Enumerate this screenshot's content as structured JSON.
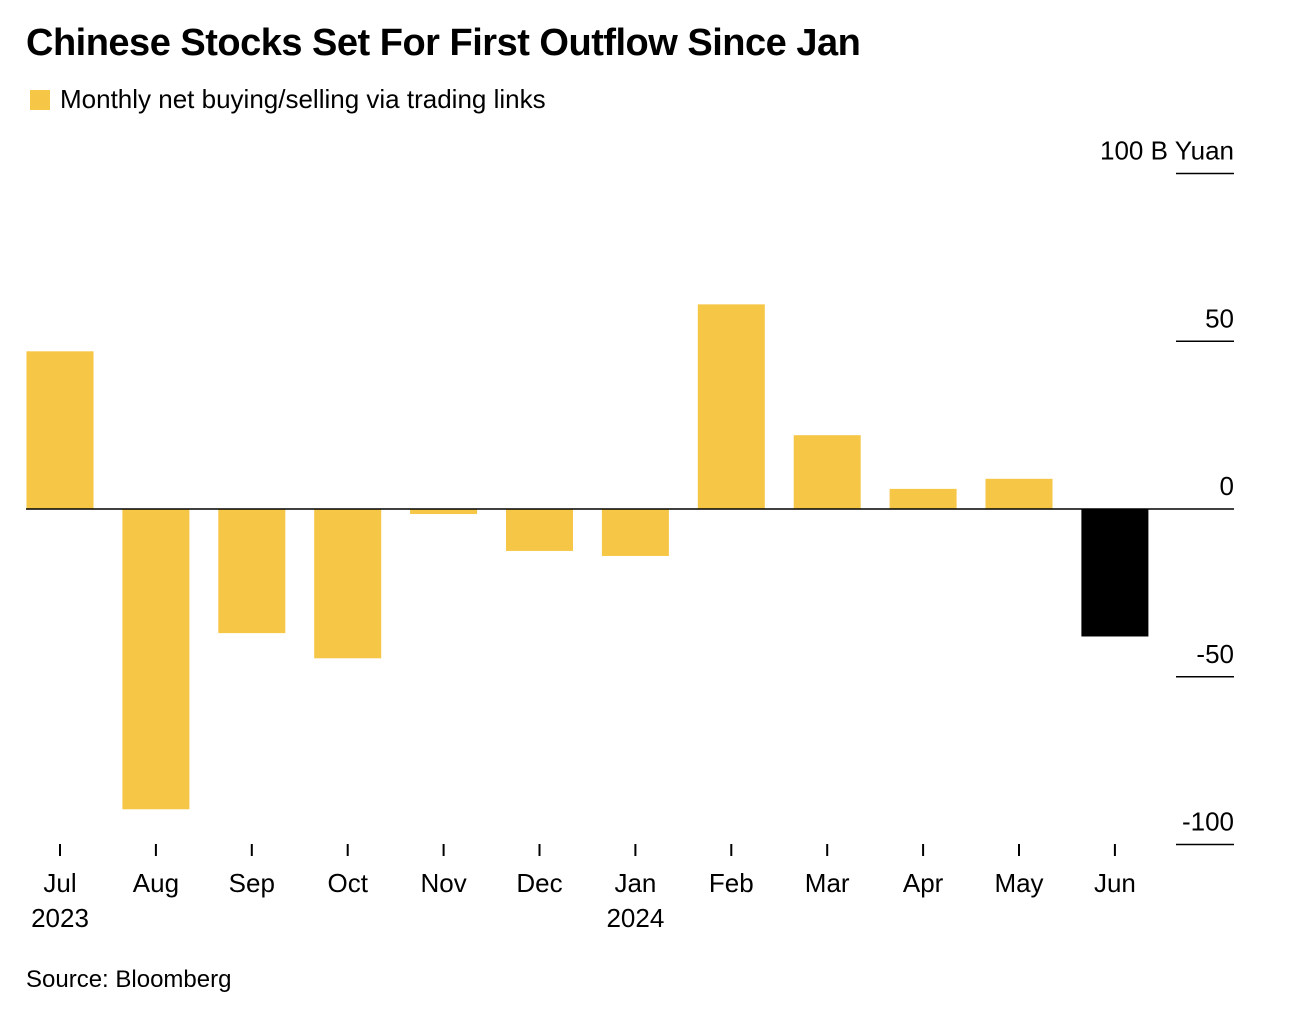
{
  "title": "Chinese Stocks Set For First Outflow Since Jan",
  "source": "Source: Bloomberg",
  "colors": {
    "bar": "#f6c646",
    "highlight": "#000000",
    "axis": "#000000"
  },
  "chart_data": {
    "type": "bar",
    "title": "Chinese Stocks Set For First Outflow Since Jan",
    "legend": {
      "position": "top-left",
      "entries": [
        "Monthly net buying/selling via trading links"
      ]
    },
    "series": [
      {
        "name": "Monthly net buying/selling via trading links",
        "values": [
          47,
          -89.5,
          -37,
          -44.5,
          -1.5,
          -12.5,
          -14,
          61,
          22,
          6,
          9,
          -38
        ],
        "highlight_index": 11
      }
    ],
    "categories": [
      "Jul 2023",
      "Aug",
      "Sep",
      "Oct",
      "Nov",
      "Dec",
      "Jan 2024",
      "Feb",
      "Mar",
      "Apr",
      "May",
      "Jun"
    ],
    "x_tick_labels": [
      {
        "month": "Jul",
        "year": "2023"
      },
      {
        "month": "Aug",
        "year": ""
      },
      {
        "month": "Sep",
        "year": ""
      },
      {
        "month": "Oct",
        "year": ""
      },
      {
        "month": "Nov",
        "year": ""
      },
      {
        "month": "Dec",
        "year": ""
      },
      {
        "month": "Jan",
        "year": "2024"
      },
      {
        "month": "Feb",
        "year": ""
      },
      {
        "month": "Mar",
        "year": ""
      },
      {
        "month": "Apr",
        "year": ""
      },
      {
        "month": "May",
        "year": ""
      },
      {
        "month": "Jun",
        "year": ""
      }
    ],
    "y_ticks": [
      {
        "value": 100,
        "label": "100 B Yuan"
      },
      {
        "value": 50,
        "label": "50"
      },
      {
        "value": 0,
        "label": "0"
      },
      {
        "value": -50,
        "label": "-50"
      },
      {
        "value": -100,
        "label": "-100"
      }
    ],
    "ylabel": "",
    "xlabel": "",
    "ylim": [
      -100,
      100
    ],
    "y_axis_side": "right",
    "grid": false
  }
}
